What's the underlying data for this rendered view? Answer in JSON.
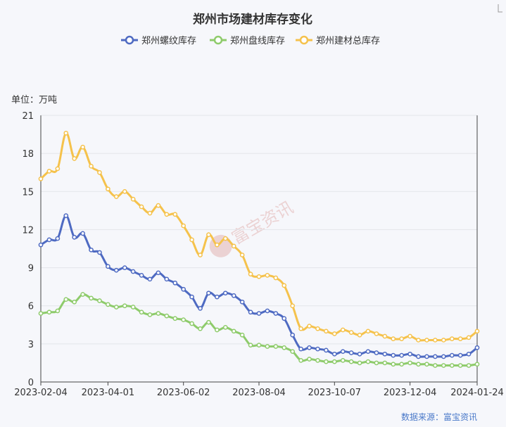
{
  "chart_data": {
    "type": "line",
    "title": "郑州市场建材库存变化",
    "unit_label": "单位：万吨",
    "source": "数据来源：富宝资讯",
    "watermark": "富宝资讯",
    "y_ticks": [
      0,
      3,
      6,
      9,
      12,
      15,
      18,
      21
    ],
    "ylim": [
      0,
      21
    ],
    "x_ticks": [
      "2023-02-04",
      "2023-04-01",
      "2023-06-02",
      "2023-08-04",
      "2023-10-07",
      "2023-12-04",
      "2024-01-24"
    ],
    "x_tick_index": [
      0,
      8,
      17,
      26,
      35,
      44,
      52
    ],
    "grid": true,
    "legend_position": "top-center",
    "series": [
      {
        "name": "郑州螺纹库存",
        "color": "#4e6ac2",
        "values": [
          10.8,
          11.2,
          11.3,
          13.1,
          11.4,
          11.7,
          10.4,
          10.2,
          9.1,
          8.8,
          9.0,
          8.7,
          8.4,
          8.1,
          8.6,
          8.1,
          7.8,
          7.3,
          6.7,
          5.8,
          7.0,
          6.7,
          7.0,
          6.8,
          6.3,
          5.5,
          5.4,
          5.6,
          5.4,
          5.0,
          3.7,
          2.6,
          2.7,
          2.6,
          2.5,
          2.2,
          2.4,
          2.3,
          2.2,
          2.4,
          2.3,
          2.2,
          2.1,
          2.1,
          2.2,
          2.0,
          2.0,
          2.0,
          2.0,
          2.1,
          2.1,
          2.2,
          2.7
        ]
      },
      {
        "name": "郑州盘线库存",
        "color": "#8ecb6b",
        "values": [
          5.4,
          5.5,
          5.6,
          6.5,
          6.3,
          6.9,
          6.6,
          6.4,
          6.1,
          5.9,
          6.0,
          5.9,
          5.5,
          5.3,
          5.4,
          5.2,
          5.0,
          4.9,
          4.6,
          4.2,
          4.7,
          4.1,
          4.3,
          4.0,
          3.7,
          2.9,
          2.9,
          2.8,
          2.8,
          2.7,
          2.4,
          1.7,
          1.8,
          1.7,
          1.6,
          1.6,
          1.7,
          1.6,
          1.5,
          1.6,
          1.5,
          1.5,
          1.4,
          1.4,
          1.5,
          1.4,
          1.4,
          1.3,
          1.3,
          1.3,
          1.3,
          1.3,
          1.4
        ]
      },
      {
        "name": "郑州建材总库存",
        "color": "#f5c24c",
        "values": [
          16.0,
          16.6,
          16.8,
          19.6,
          17.6,
          18.5,
          17.0,
          16.5,
          15.2,
          14.6,
          15.0,
          14.4,
          13.8,
          13.3,
          13.9,
          13.2,
          13.2,
          12.3,
          11.2,
          10.0,
          11.6,
          10.8,
          11.3,
          10.7,
          10.0,
          8.5,
          8.3,
          8.4,
          8.2,
          7.6,
          6.0,
          4.2,
          4.4,
          4.2,
          4.0,
          3.8,
          4.1,
          3.9,
          3.7,
          4.0,
          3.8,
          3.6,
          3.4,
          3.4,
          3.6,
          3.3,
          3.3,
          3.3,
          3.3,
          3.4,
          3.4,
          3.5,
          4.0
        ]
      }
    ]
  }
}
